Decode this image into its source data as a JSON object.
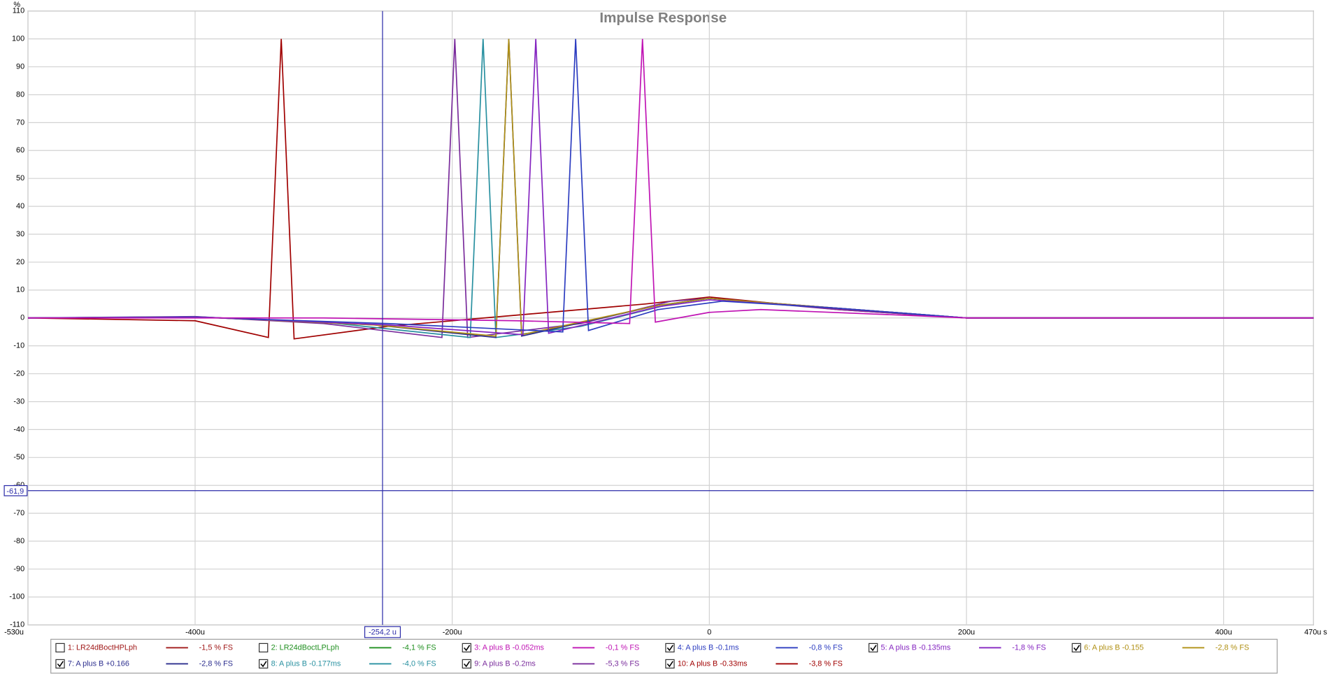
{
  "chart_data": {
    "type": "line",
    "title": "Impulse Response",
    "y_label": "%",
    "xlim": [
      -530,
      470
    ],
    "xticks": [
      {
        "value": -530,
        "label": "-530u"
      },
      {
        "value": -400,
        "label": "-400u"
      },
      {
        "value": -200,
        "label": "-200u"
      },
      {
        "value": 0,
        "label": "0"
      },
      {
        "value": 200,
        "label": "200u"
      },
      {
        "value": 400,
        "label": "400u"
      },
      {
        "value": 470,
        "label": "470u s"
      }
    ],
    "ylim": [
      -110,
      110
    ],
    "yticks": [
      -110,
      -100,
      -90,
      -80,
      -70,
      -60,
      -50,
      -40,
      -30,
      -20,
      -10,
      0,
      10,
      20,
      30,
      40,
      50,
      60,
      70,
      80,
      90,
      100,
      110
    ],
    "grid": true,
    "cursor": {
      "x": {
        "value": -254.2,
        "label": "-254,2 u"
      },
      "y": {
        "value": -61.9,
        "label": "-61,9"
      },
      "color": "#2a2aa8"
    },
    "series": [
      {
        "name": "1: LR24dBoctHPLph",
        "color": "#a01818",
        "legend_value": "-1,5 % FS",
        "visible": false
      },
      {
        "name": "2: LR24dBoctLPLph",
        "color": "#1f8f1f",
        "legend_value": "-4,1 % FS",
        "visible": false
      },
      {
        "name": "3: A plus B -0.052ms",
        "color": "#c014b4",
        "legend_value": "-0,1 % FS",
        "visible": true,
        "x": [
          -530,
          -300,
          -150,
          -62,
          -52,
          -42,
          0,
          40,
          150,
          200,
          470
        ],
        "values": [
          0,
          0,
          -1,
          -2,
          100,
          -1.5,
          2,
          3,
          1,
          0,
          0
        ]
      },
      {
        "name": "4: A plus B -0.1ms",
        "color": "#2c3cc0",
        "legend_value": "-0,8 % FS",
        "visible": true,
        "x": [
          -530,
          -400,
          -250,
          -114,
          -104,
          -94,
          -40,
          10,
          100,
          200,
          470
        ],
        "values": [
          0,
          0.3,
          -2,
          -5,
          100,
          -4.5,
          3,
          6,
          3.5,
          0,
          0
        ]
      },
      {
        "name": "5: A plus B -0.135ms",
        "color": "#8424c0",
        "legend_value": "-1,8 % FS",
        "visible": true,
        "x": [
          -530,
          -400,
          -250,
          -145,
          -135,
          -125,
          -40,
          0,
          100,
          200,
          470
        ],
        "values": [
          0,
          0.4,
          -2.5,
          -6,
          100,
          -5.5,
          4,
          6.5,
          3.5,
          0,
          0
        ]
      },
      {
        "name": "6: A plus B -0.155",
        "color": "#b09014",
        "legend_value": "-2,8 % FS",
        "visible": true,
        "x": [
          -530,
          -400,
          -260,
          -166,
          -156,
          -146,
          -40,
          0,
          100,
          200,
          470
        ],
        "values": [
          0,
          0.4,
          -2.5,
          -6.5,
          100,
          -6,
          4.5,
          7,
          3.5,
          0,
          0
        ]
      },
      {
        "name": "7: A plus B +0.166",
        "color": "#2c2e8e",
        "legend_value": "-2,8 % FS",
        "visible": true,
        "x": [
          -530,
          -400,
          -260,
          -166,
          -156,
          -146,
          -40,
          0,
          100,
          200,
          470
        ],
        "values": [
          0,
          0.4,
          -2.5,
          -7,
          100,
          -6.5,
          4.5,
          7,
          3.5,
          0,
          0
        ]
      },
      {
        "name": "8: A plus B -0.177ms",
        "color": "#2890a0",
        "legend_value": "-4,0 % FS",
        "visible": true,
        "x": [
          -530,
          -400,
          -300,
          -186,
          -176,
          -166,
          -100,
          -30,
          0,
          100,
          200,
          470
        ],
        "values": [
          0,
          0.3,
          -1.5,
          -7,
          100,
          -7,
          -3,
          5,
          7,
          3.5,
          0,
          0
        ]
      },
      {
        "name": "9: A plus B -0.2ms",
        "color": "#7a2c9c",
        "legend_value": "-5,3 % FS",
        "visible": true,
        "x": [
          -530,
          -400,
          -300,
          -208,
          -198,
          -188,
          -100,
          -30,
          0,
          100,
          200,
          470
        ],
        "values": [
          0,
          0.5,
          -2,
          -7,
          100,
          -7,
          -2,
          6,
          7,
          3,
          0,
          0
        ]
      },
      {
        "name": "10: A plus B -0.33ms",
        "color": "#a00000",
        "legend_value": "-3,8 % FS",
        "visible": true,
        "x": [
          -530,
          -400,
          -343,
          -333,
          -323,
          -250,
          -150,
          -50,
          0,
          100,
          200,
          470
        ],
        "values": [
          0,
          -1,
          -7,
          100,
          -7.5,
          -3,
          1,
          5,
          7.5,
          3,
          0,
          0
        ]
      }
    ]
  }
}
